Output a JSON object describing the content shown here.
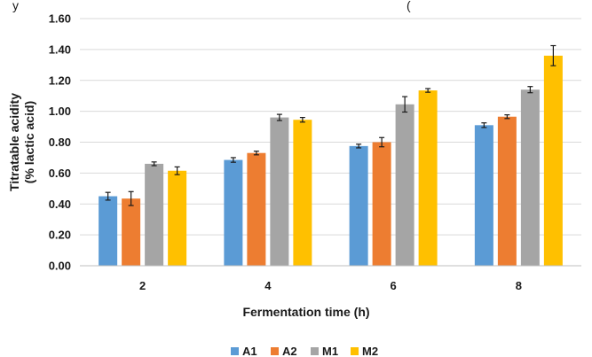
{
  "header_fragment": "y",
  "header_fragment_right": "(",
  "chart_data": {
    "type": "bar",
    "categories": [
      "2",
      "4",
      "6",
      "8"
    ],
    "series": [
      {
        "name": "A1",
        "color": "#5b9bd5",
        "values": [
          0.45,
          0.685,
          0.775,
          0.91
        ],
        "errors": [
          0.025,
          0.015,
          0.012,
          0.015
        ]
      },
      {
        "name": "A2",
        "color": "#ed7d31",
        "values": [
          0.435,
          0.73,
          0.8,
          0.965
        ],
        "errors": [
          0.045,
          0.012,
          0.03,
          0.012
        ]
      },
      {
        "name": "M1",
        "color": "#a5a5a5",
        "values": [
          0.66,
          0.96,
          1.045,
          1.14
        ],
        "errors": [
          0.012,
          0.02,
          0.05,
          0.02
        ]
      },
      {
        "name": "M2",
        "color": "#ffc000",
        "values": [
          0.615,
          0.945,
          1.135,
          1.36
        ],
        "errors": [
          0.025,
          0.015,
          0.012,
          0.065
        ]
      }
    ],
    "xlabel": "Fermentation time (h)",
    "ylabel_line1": "Titratable acidity",
    "ylabel_line2": "(% lactic acid)",
    "ylim": [
      0,
      1.6
    ],
    "yticks": [
      "0.00",
      "0.20",
      "0.40",
      "0.60",
      "0.80",
      "1.00",
      "1.20",
      "1.40",
      "1.60"
    ],
    "legend_position": "bottom",
    "grid": true
  }
}
